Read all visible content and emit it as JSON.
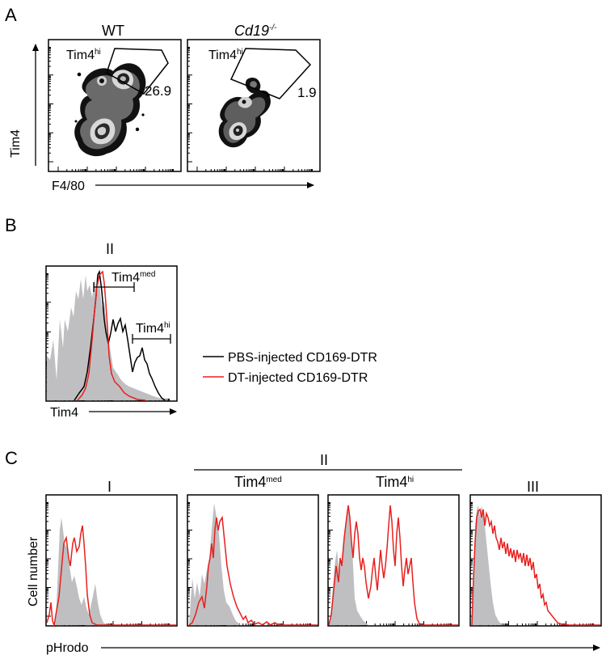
{
  "panels": {
    "A": {
      "letter": "A",
      "y_axis_label": "Tim4",
      "x_axis_label": "F4/80",
      "plots": [
        {
          "title": "WT",
          "gate_label": "Tim4",
          "gate_sup": "hi",
          "gate_value": "26.9"
        },
        {
          "title": "Cd19",
          "title_sup": "-/-",
          "gate_label": "Tim4",
          "gate_sup": "hi",
          "gate_value": "1.9"
        }
      ]
    },
    "B": {
      "letter": "B",
      "subset_label": "II",
      "x_axis_label": "Tim4",
      "gates": [
        {
          "label": "Tim4",
          "sup": "med"
        },
        {
          "label": "Tim4",
          "sup": "hi"
        }
      ],
      "legend": [
        {
          "label": "PBS-injected CD169-DTR",
          "color": "#000000"
        },
        {
          "label": "DT-injected CD169-DTR",
          "color": "#e8201f"
        }
      ]
    },
    "C": {
      "letter": "C",
      "group_label": "II",
      "y_axis_label": "Cell number",
      "x_axis_label": "pHrodo",
      "plots": [
        {
          "title": "I",
          "title_sup": ""
        },
        {
          "title": "Tim4",
          "title_sup": "med"
        },
        {
          "title": "Tim4",
          "title_sup": "hi"
        },
        {
          "title": "III",
          "title_sup": ""
        }
      ]
    }
  },
  "colors": {
    "red_trace": "#e8201f",
    "black_trace": "#000000",
    "control_fill": "#bfbfc1"
  }
}
